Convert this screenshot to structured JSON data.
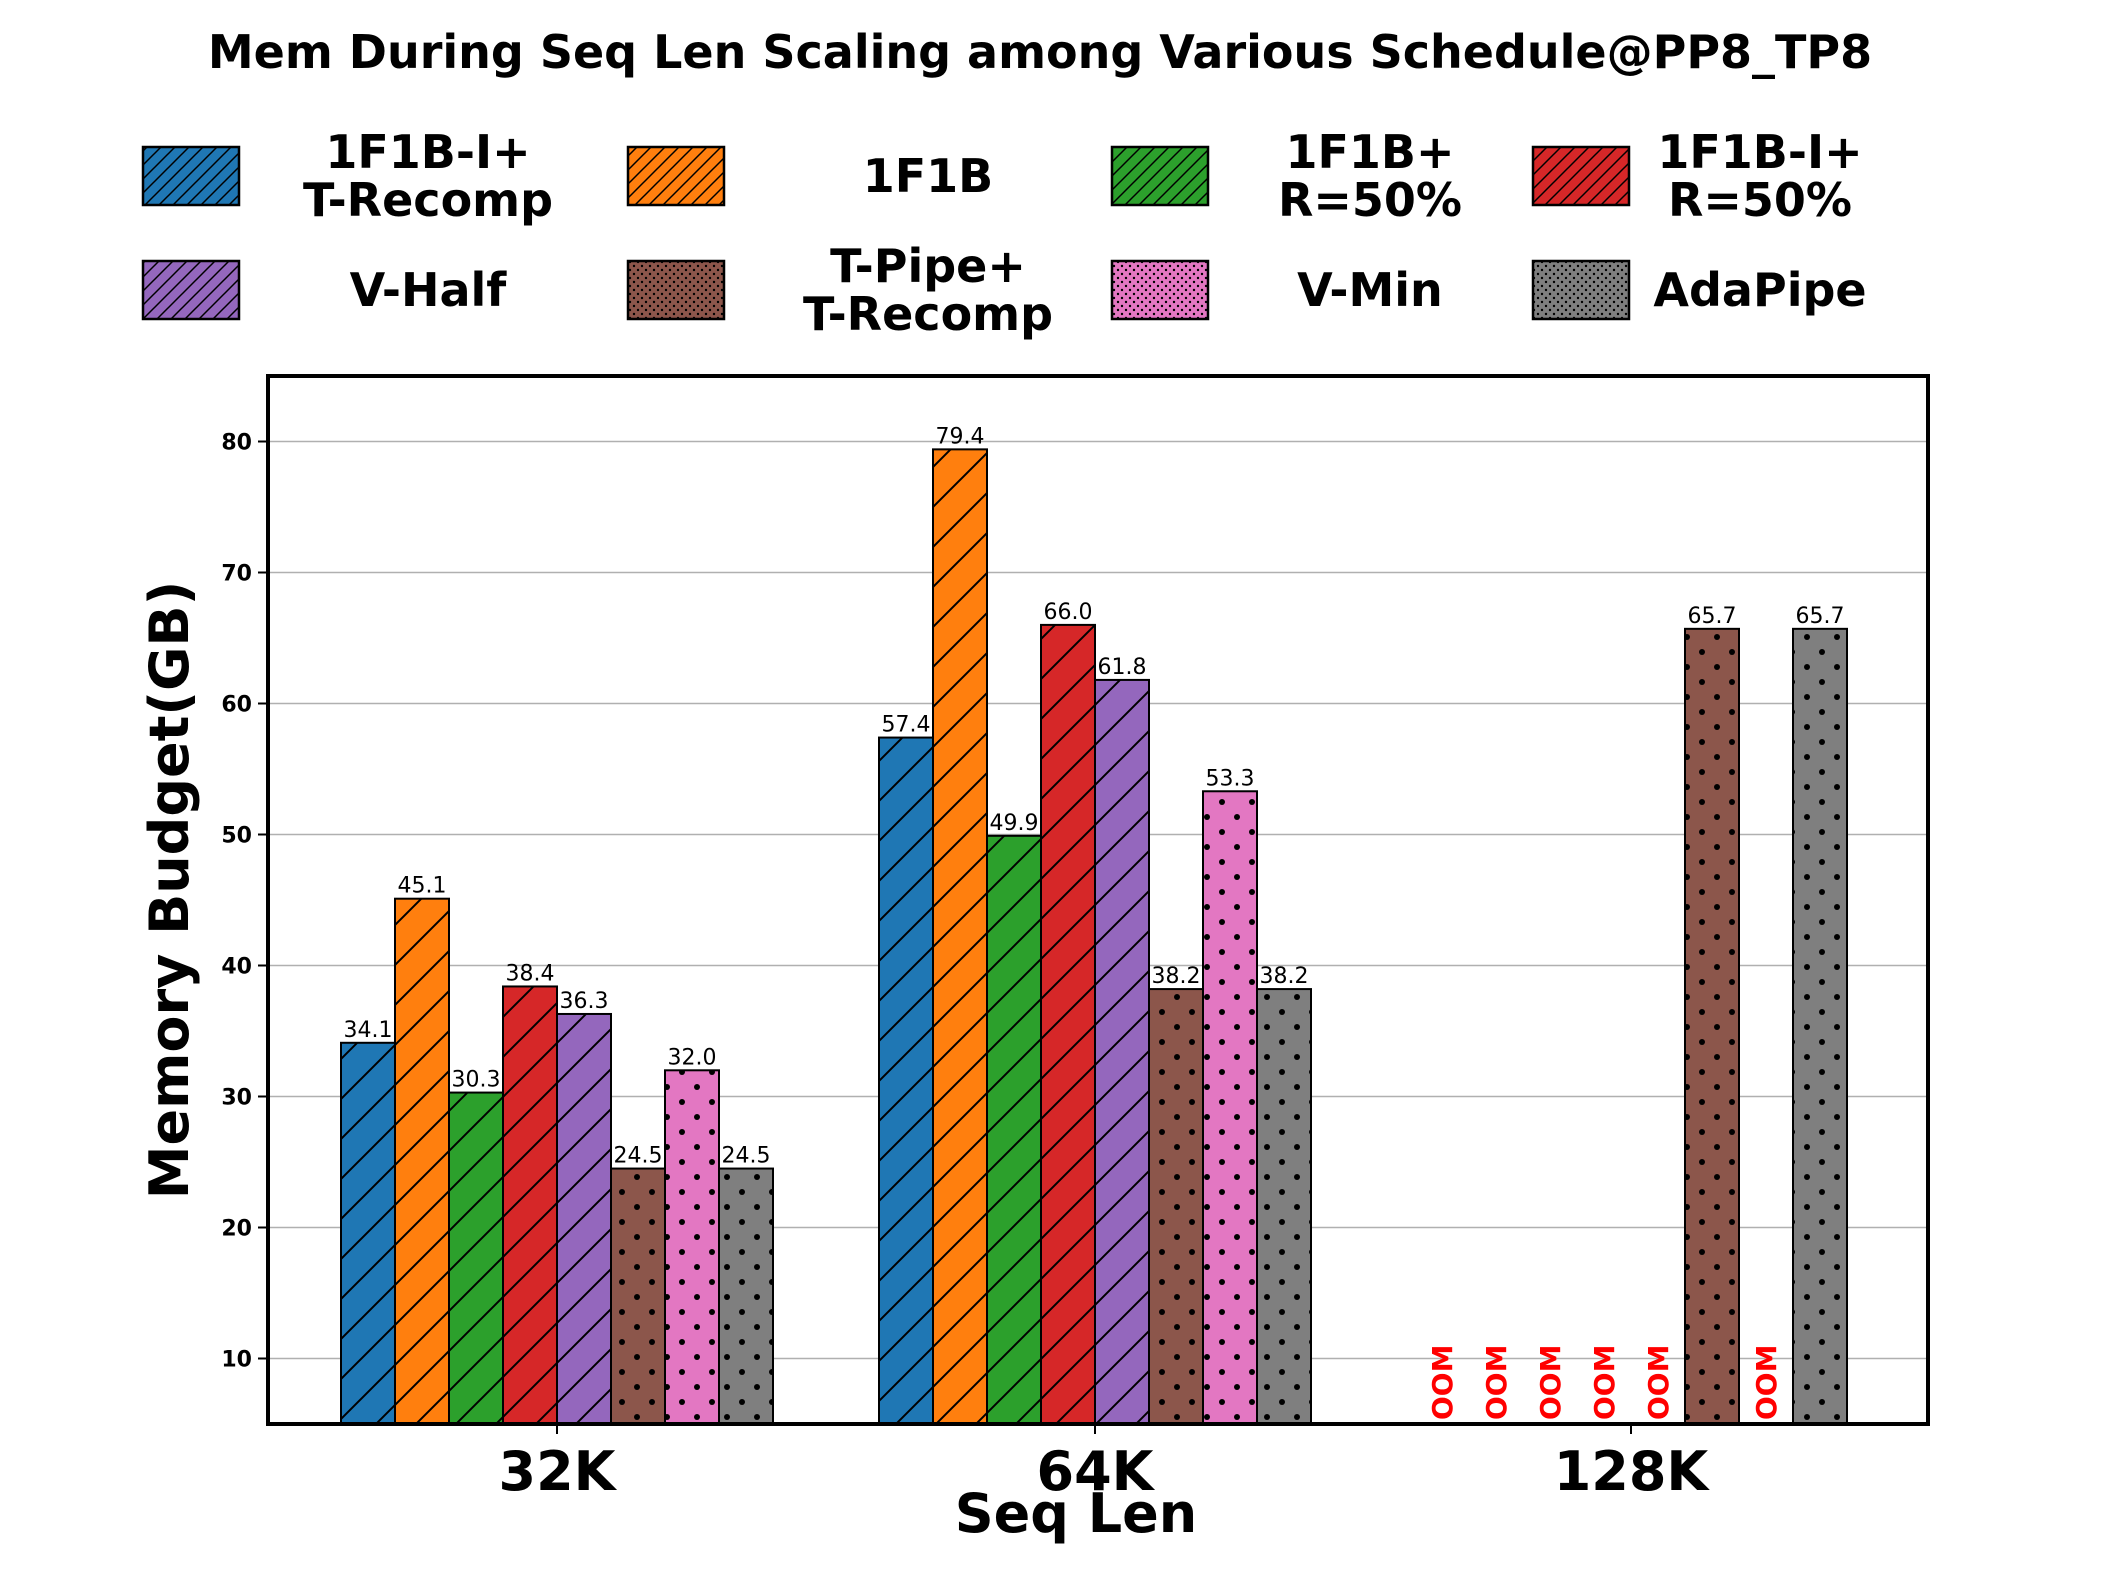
{
  "chart_data": {
    "type": "bar",
    "title": "Mem During Seq Len Scaling among Various Schedule@PP8_TP8",
    "xlabel": "Seq Len",
    "ylabel": "Memory Budget(GB)",
    "ylim": [
      5,
      85
    ],
    "yticks": [
      10,
      20,
      30,
      40,
      50,
      60,
      70,
      80
    ],
    "grid": "horizontal",
    "legend_placement": "top",
    "categories": [
      "32K",
      "64K",
      "128K"
    ],
    "oom_text": "OOM",
    "series": [
      {
        "name_lines": [
          "1F1B-I+",
          "T-Recomp"
        ],
        "color": "#1f77b4",
        "hatch": "diag",
        "values": [
          34.1,
          57.4,
          null
        ],
        "labels": [
          "34.1",
          "57.4",
          "OOM"
        ]
      },
      {
        "name_lines": [
          "1F1B"
        ],
        "color": "#ff7f0e",
        "hatch": "diag",
        "values": [
          45.1,
          79.4,
          null
        ],
        "labels": [
          "45.1",
          "79.4",
          "OOM"
        ]
      },
      {
        "name_lines": [
          "1F1B+",
          "R=50%"
        ],
        "color": "#2ca02c",
        "hatch": "diag",
        "values": [
          30.3,
          49.9,
          null
        ],
        "labels": [
          "30.3",
          "49.9",
          "OOM"
        ]
      },
      {
        "name_lines": [
          "1F1B-I+",
          "R=50%"
        ],
        "color": "#d62728",
        "hatch": "diag",
        "values": [
          38.4,
          66.0,
          null
        ],
        "labels": [
          "38.4",
          "66.0",
          "OOM"
        ]
      },
      {
        "name_lines": [
          "V-Half"
        ],
        "color": "#9467bd",
        "hatch": "diag",
        "values": [
          36.3,
          61.8,
          null
        ],
        "labels": [
          "36.3",
          "61.8",
          "OOM"
        ]
      },
      {
        "name_lines": [
          "T-Pipe+",
          "T-Recomp"
        ],
        "color": "#8c564b",
        "hatch": "dots",
        "values": [
          24.5,
          38.2,
          65.7
        ],
        "labels": [
          "24.5",
          "38.2",
          "65.7"
        ]
      },
      {
        "name_lines": [
          "V-Min"
        ],
        "color": "#e377c2",
        "hatch": "dots",
        "values": [
          32.0,
          53.3,
          null
        ],
        "labels": [
          "32.0",
          "53.3",
          "OOM"
        ]
      },
      {
        "name_lines": [
          "AdaPipe"
        ],
        "color": "#7f7f7f",
        "hatch": "dots",
        "values": [
          24.5,
          38.2,
          65.7
        ],
        "labels": [
          "24.5",
          "38.2",
          "65.7"
        ]
      }
    ]
  }
}
